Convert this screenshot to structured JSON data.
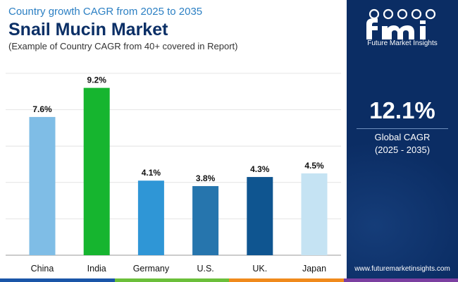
{
  "header": {
    "subtitle": "Country growth CAGR from 2025 to 2035",
    "title": "Snail Mucin Market",
    "note": "(Example of Country CAGR from 40+ covered in Report)"
  },
  "chart_data": {
    "type": "bar",
    "categories": [
      "China",
      "India",
      "Germany",
      "U.S.",
      "UK.",
      "Japan"
    ],
    "values": [
      7.6,
      9.2,
      4.1,
      3.8,
      4.3,
      4.5
    ],
    "labels": [
      "7.6%",
      "9.2%",
      "4.1%",
      "3.8%",
      "4.3%",
      "4.5%"
    ],
    "colors": [
      "#7fbde6",
      "#16b52f",
      "#2f96d6",
      "#2675ad",
      "#0f5590",
      "#c5e3f3"
    ],
    "ylim": [
      0,
      10
    ],
    "grid": true,
    "title": "",
    "xlabel": "",
    "ylabel": ""
  },
  "sidebar": {
    "logo_text": "Future Market Insights",
    "global_cagr_value": "12.1%",
    "global_cagr_label": "Global CAGR",
    "global_cagr_years": "(2025 - 2035)",
    "website": "www.futuremarketinsights.com"
  },
  "footer_colors": [
    "#1a56a8",
    "#6bbf3a",
    "#f08a1c",
    "#7b3fa0"
  ]
}
